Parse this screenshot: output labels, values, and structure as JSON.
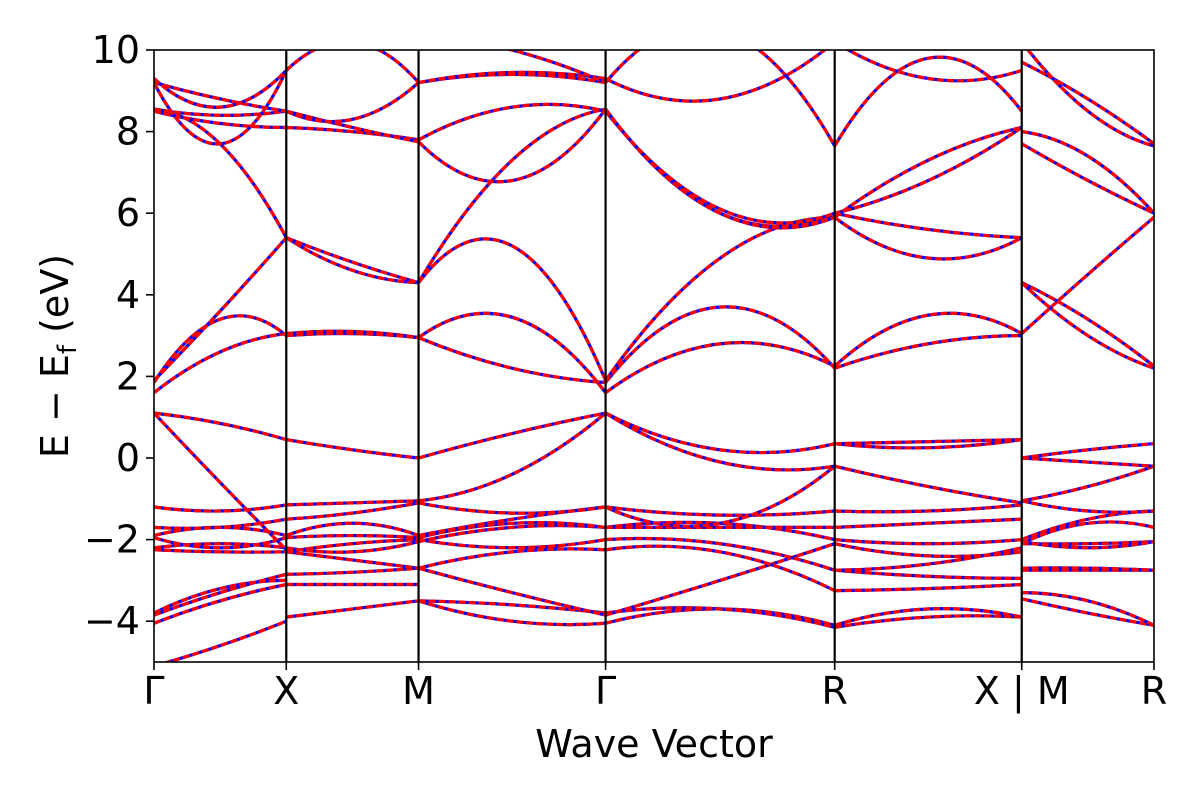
{
  "chart_data": {
    "type": "line",
    "title": "",
    "xlabel": "Wave Vector",
    "ylabel": "E − E_f (eV)",
    "ylabel_parts": {
      "main": "E − E",
      "sub": "f",
      "tail": " (eV)"
    },
    "ylim": [
      -5,
      10
    ],
    "yticks": [
      -4,
      -2,
      0,
      2,
      4,
      6,
      8,
      10
    ],
    "ytick_labels": [
      "−4",
      "−2",
      "0",
      "2",
      "4",
      "6",
      "8",
      "10"
    ],
    "xlim": [
      0,
      7.5
    ],
    "kpoints": [
      {
        "pos": 0.0,
        "label": "Γ"
      },
      {
        "pos": 1.0,
        "label": "X"
      },
      {
        "pos": 2.0,
        "label": "M"
      },
      {
        "pos": 3.414,
        "label": "Γ"
      },
      {
        "pos": 5.146,
        "label": "R"
      },
      {
        "pos": 6.56,
        "label": "X | M"
      },
      {
        "pos": 7.56,
        "label": "R"
      }
    ],
    "legend": "none",
    "grid": false,
    "series_styles": [
      {
        "style": "solid",
        "color": "#0000ff"
      },
      {
        "style": "dashed",
        "color": "#ff0000"
      }
    ],
    "segments": [
      {
        "from": "Γ",
        "to": "X",
        "bands": [
          [
            -5.1,
            -4.6,
            -4.0
          ],
          [
            -4.05,
            -3.5,
            -3.1
          ],
          [
            -3.85,
            -3.3,
            -2.85
          ],
          [
            -3.8,
            -3.2,
            -3.0
          ],
          [
            -2.25,
            -2.3,
            -2.3
          ],
          [
            -2.2,
            -2.1,
            -2.2
          ],
          [
            -1.95,
            -2.2,
            -1.95
          ],
          [
            -1.9,
            -1.7,
            -1.9
          ],
          [
            -1.7,
            -1.7,
            -1.5
          ],
          [
            -1.2,
            -1.3,
            -1.15
          ],
          [
            1.1,
            -0.6,
            -2.25
          ],
          [
            1.1,
            0.85,
            0.45
          ],
          [
            1.6,
            2.6,
            3.05
          ],
          [
            1.85,
            3.4,
            3.0
          ],
          [
            1.9,
            3.6,
            5.4
          ],
          [
            8.55,
            7.7,
            5.4
          ],
          [
            8.5,
            8.2,
            8.1
          ],
          [
            8.55,
            8.4,
            8.5
          ],
          [
            9.2,
            8.8,
            8.5
          ],
          [
            9.2,
            7.7,
            9.5
          ],
          [
            9.3,
            8.6,
            9.5
          ]
        ]
      },
      {
        "from": "X",
        "to": "M",
        "bands": [
          [
            -3.9,
            -3.7,
            -3.5
          ],
          [
            -3.1,
            -3.1,
            -3.1
          ],
          [
            -2.85,
            -2.8,
            -2.7
          ],
          [
            -2.3,
            -2.5,
            -2.7
          ],
          [
            -2.3,
            -2.1,
            -2.0
          ],
          [
            -2.2,
            -2.3,
            -2.05
          ],
          [
            -1.95,
            -1.9,
            -1.95
          ],
          [
            -1.9,
            -1.6,
            -1.9
          ],
          [
            -1.5,
            -1.35,
            -1.1
          ],
          [
            -1.15,
            -1.1,
            -1.05
          ],
          [
            0.45,
            0.2,
            0.0
          ],
          [
            3.05,
            3.1,
            2.95
          ],
          [
            3.0,
            3.05,
            2.95
          ],
          [
            5.4,
            4.6,
            4.3
          ],
          [
            5.4,
            4.8,
            4.3
          ],
          [
            8.1,
            8.0,
            7.8
          ],
          [
            8.5,
            8.1,
            7.75
          ],
          [
            8.5,
            8.3,
            9.2
          ],
          [
            9.5,
            10.2,
            9.2
          ]
        ]
      },
      {
        "from": "M",
        "to": "Γ",
        "bands": [
          [
            -3.5,
            -4.0,
            -4.05
          ],
          [
            -3.5,
            -3.6,
            -3.8
          ],
          [
            -2.7,
            -3.3,
            -3.85
          ],
          [
            -2.7,
            -2.3,
            -2.25
          ],
          [
            -2.0,
            -2.2,
            -2.0
          ],
          [
            -2.05,
            -1.7,
            -1.7
          ],
          [
            -1.95,
            -1.6,
            -1.7
          ],
          [
            -1.9,
            -1.5,
            -1.2
          ],
          [
            -1.1,
            -1.35,
            -1.2
          ],
          [
            -1.05,
            -0.4,
            1.1
          ],
          [
            0.0,
            0.6,
            1.1
          ],
          [
            2.95,
            3.45,
            1.6
          ],
          [
            2.95,
            2.2,
            1.85
          ],
          [
            4.3,
            5.2,
            1.9
          ],
          [
            4.3,
            7.3,
            8.55
          ],
          [
            7.8,
            8.6,
            8.5
          ],
          [
            7.75,
            6.8,
            8.55
          ],
          [
            9.2,
            9.4,
            9.2
          ],
          [
            9.2,
            9.45,
            9.3
          ],
          [
            10.4,
            10.0,
            9.2
          ]
        ]
      },
      {
        "from": "Γ",
        "to": "R",
        "bands": [
          [
            -4.05,
            -3.7,
            -4.1
          ],
          [
            -3.8,
            -3.7,
            -4.15
          ],
          [
            -3.85,
            -3.0,
            -2.1
          ],
          [
            -2.25,
            -2.3,
            -3.25
          ],
          [
            -2.0,
            -2.1,
            -2.75
          ],
          [
            -1.7,
            -1.6,
            -2.0
          ],
          [
            -1.7,
            -1.7,
            -1.7
          ],
          [
            -1.2,
            -1.4,
            -1.3
          ],
          [
            -1.2,
            -1.6,
            -0.2
          ],
          [
            1.1,
            -0.1,
            -0.2
          ],
          [
            1.1,
            0.2,
            0.35
          ],
          [
            1.6,
            2.8,
            2.25
          ],
          [
            1.85,
            3.7,
            2.2
          ],
          [
            1.9,
            4.9,
            5.9
          ],
          [
            8.55,
            6.0,
            6.0
          ],
          [
            8.5,
            6.1,
            6.0
          ],
          [
            8.55,
            6.0,
            5.9
          ],
          [
            9.2,
            10.5,
            7.65
          ],
          [
            9.3,
            8.8,
            10.2
          ]
        ]
      },
      {
        "from": "R",
        "to": "X",
        "bands": [
          [
            -4.1,
            -3.7,
            -3.9
          ],
          [
            -4.15,
            -3.9,
            -3.9
          ],
          [
            -3.25,
            -3.2,
            -3.1
          ],
          [
            -2.75,
            -2.9,
            -2.95
          ],
          [
            -2.75,
            -2.6,
            -2.2
          ],
          [
            -2.1,
            -2.4,
            -2.3
          ],
          [
            -2.0,
            -2.1,
            -2.0
          ],
          [
            -1.7,
            -1.6,
            -1.5
          ],
          [
            -1.3,
            -1.3,
            -1.15
          ],
          [
            -0.2,
            -0.7,
            -1.1
          ],
          [
            0.35,
            0.25,
            0.45
          ],
          [
            0.35,
            0.4,
            0.45
          ],
          [
            2.25,
            3.5,
            3.05
          ],
          [
            2.2,
            2.8,
            3.0
          ],
          [
            5.9,
            4.9,
            5.4
          ],
          [
            6.0,
            5.6,
            5.4
          ],
          [
            6.0,
            6.8,
            8.1
          ],
          [
            5.9,
            7.3,
            8.1
          ],
          [
            7.65,
            9.8,
            8.5
          ],
          [
            10.2,
            9.3,
            9.5
          ]
        ]
      },
      {
        "from": "M",
        "to": "R",
        "bands": [
          [
            -3.45,
            -3.8,
            -4.1
          ],
          [
            -3.3,
            -3.5,
            -4.1
          ],
          [
            -2.75,
            -2.75,
            -2.75
          ],
          [
            -2.7,
            -2.7,
            -2.75
          ],
          [
            -2.1,
            -2.1,
            -2.05
          ],
          [
            -2.05,
            -2.2,
            -2.05
          ],
          [
            -2.0,
            -1.5,
            -1.3
          ],
          [
            -2.1,
            -1.6,
            -1.7
          ],
          [
            -1.05,
            -0.7,
            -0.2
          ],
          [
            -1.05,
            -1.3,
            -1.3
          ],
          [
            0.0,
            0.2,
            0.35
          ],
          [
            0.0,
            -0.1,
            -0.2
          ],
          [
            3.05,
            4.5,
            5.9
          ],
          [
            4.3,
            3.4,
            2.25
          ],
          [
            4.3,
            3.0,
            2.2
          ],
          [
            8.0,
            7.4,
            6.0
          ],
          [
            7.7,
            6.8,
            6.0
          ],
          [
            9.7,
            8.8,
            7.7
          ],
          [
            10.2,
            8.5,
            7.65
          ]
        ]
      }
    ]
  }
}
